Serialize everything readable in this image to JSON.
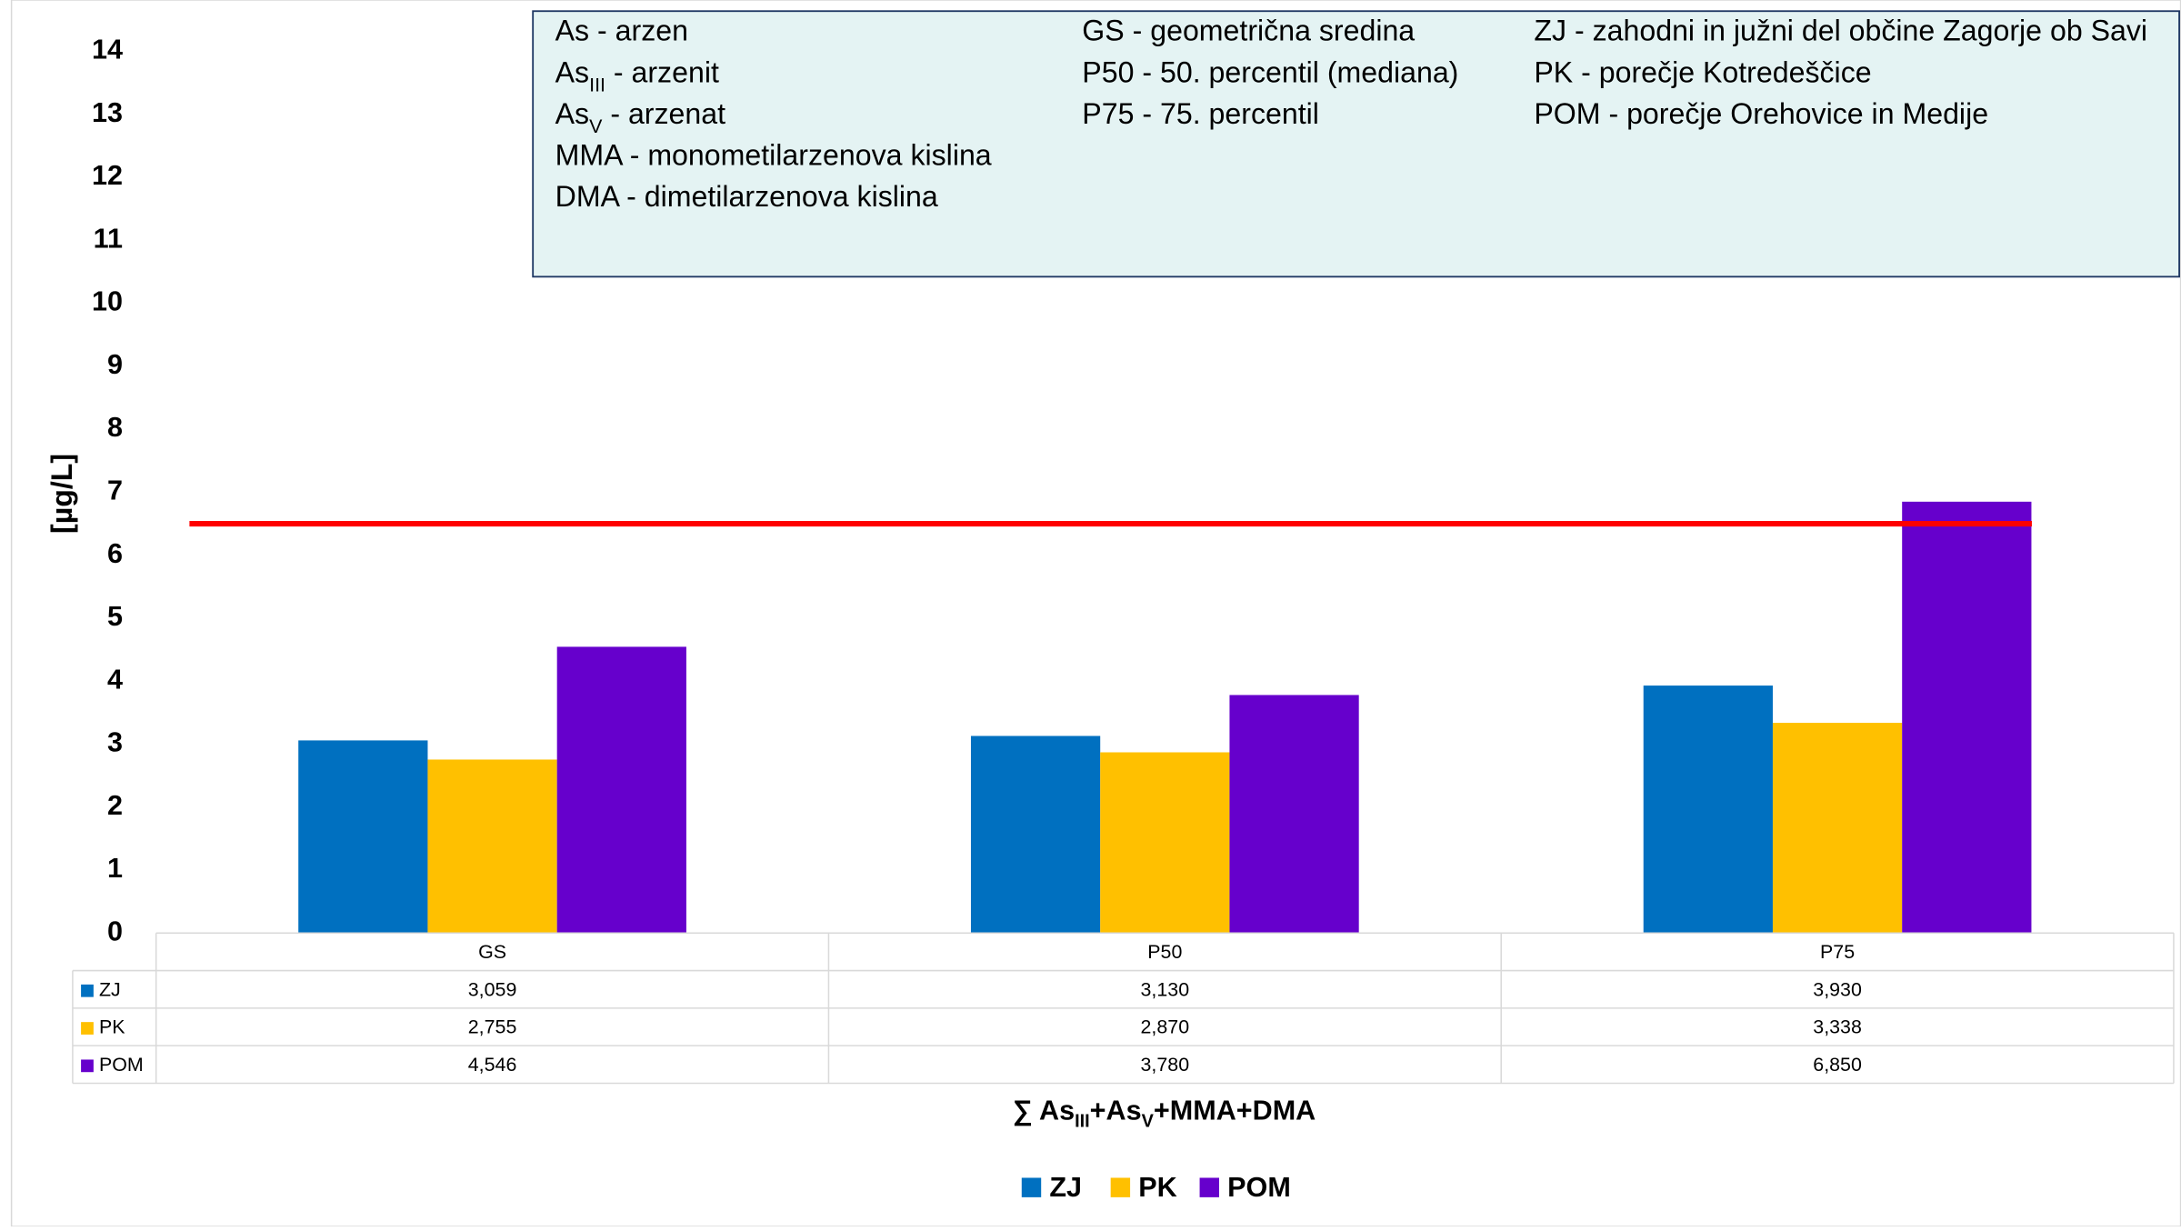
{
  "chart_data": {
    "type": "bar",
    "categories": [
      "GS",
      "P50",
      "P75"
    ],
    "series": [
      {
        "name": "ZJ",
        "color": "#0070c0",
        "values": [
          3.059,
          3.13,
          3.93
        ],
        "value_labels": [
          "3,059",
          "3,130",
          "3,930"
        ]
      },
      {
        "name": "PK",
        "color": "#ffc000",
        "values": [
          2.755,
          2.87,
          3.338
        ],
        "value_labels": [
          "2,755",
          "2,870",
          "3,338"
        ]
      },
      {
        "name": "POM",
        "color": "#6600cc",
        "values": [
          4.546,
          3.78,
          6.85
        ],
        "value_labels": [
          "4,546",
          "3,780",
          "6,850"
        ]
      }
    ],
    "ylim": [
      0,
      14
    ],
    "yticks": [
      0,
      1,
      2,
      3,
      4,
      5,
      6,
      7,
      8,
      9,
      10,
      11,
      12,
      13,
      14
    ],
    "y_label": "[µg/L]",
    "x_label": [
      "∑ As",
      "III",
      "+As",
      "V",
      "+MMA+DMA"
    ],
    "threshold": 6.5,
    "threshold_color": "#ff0000",
    "legend": "bottom",
    "glossary": [
      [
        [
          "As - arzen"
        ],
        [
          "As",
          "III",
          " - arzenit"
        ],
        [
          "As",
          "V",
          " - arzenat"
        ],
        [
          "MMA - monometilarzenova kislina"
        ],
        [
          "DMA - dimetilarzenova kislina"
        ]
      ],
      [
        [
          "GS - geometrična sredina"
        ],
        [
          "P50 - 50. percentil (mediana)"
        ],
        [
          "P75 - 75. percentil"
        ]
      ],
      [
        [
          "ZJ - zahodni in južni del občine Zagorje ob Savi"
        ],
        [
          "PK - porečje Kotredeščice"
        ],
        [
          "POM - porečje Orehovice in Medije"
        ]
      ]
    ]
  }
}
